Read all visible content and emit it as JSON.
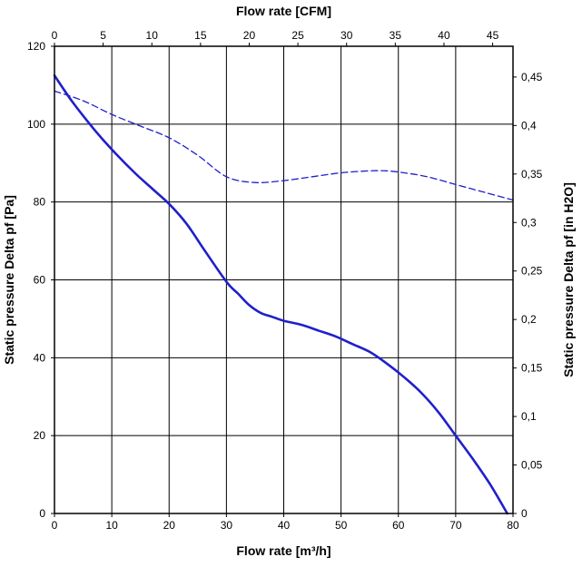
{
  "chart_data": {
    "type": "line",
    "title": "",
    "xlabel": "Flow rate [m³/h]",
    "x2label": "Flow rate [CFM]",
    "ylabel": "Static pressure Delta pf [Pa]",
    "y2label": "Static pressure Delta pf [in H2O]",
    "xlim": [
      0,
      80
    ],
    "ylim": [
      0,
      120
    ],
    "x2lim": [
      0,
      47.09
    ],
    "y2lim": [
      0,
      0.4817
    ],
    "grid": true,
    "xticks": [
      "0",
      "10",
      "20",
      "30",
      "40",
      "50",
      "60",
      "70",
      "80"
    ],
    "yticks": [
      "0",
      "20",
      "40",
      "60",
      "80",
      "100",
      "120"
    ],
    "x2ticks": [
      "0",
      "5",
      "10",
      "15",
      "20",
      "25",
      "30",
      "35",
      "40",
      "45"
    ],
    "y2ticks": [
      "0",
      "0,05",
      "0,1",
      "0,15",
      "0,2",
      "0,25",
      "0,3",
      "0,35",
      "0,4",
      "0,45"
    ],
    "colors": {
      "curve": "#1f1fcc",
      "grid": "#000000"
    },
    "series": [
      {
        "style": "solid",
        "x": [
          0,
          3,
          7,
          10,
          14,
          17,
          20,
          23,
          26,
          30,
          32,
          34,
          36,
          38,
          40,
          43,
          46,
          49,
          52,
          55,
          58,
          61,
          64,
          67,
          70,
          73,
          76,
          79
        ],
        "y": [
          112.5,
          106,
          98.5,
          93.5,
          87.5,
          83.5,
          79.5,
          74.5,
          68,
          59.5,
          56.5,
          53.5,
          51.5,
          50.5,
          49.5,
          48.5,
          47,
          45.5,
          43.5,
          41.5,
          38.5,
          35,
          31,
          26,
          20,
          14,
          7.5,
          0
        ]
      },
      {
        "style": "dashed",
        "x": [
          0,
          5,
          10,
          15,
          20,
          25,
          30,
          35,
          40,
          45,
          50,
          55,
          58,
          61,
          65,
          70,
          75,
          80
        ],
        "y": [
          108.5,
          106,
          102.5,
          99.5,
          96.5,
          92,
          86.5,
          85,
          85.5,
          86.5,
          87.5,
          88,
          88,
          87.5,
          86.5,
          84.5,
          82.5,
          80.5
        ]
      }
    ]
  }
}
